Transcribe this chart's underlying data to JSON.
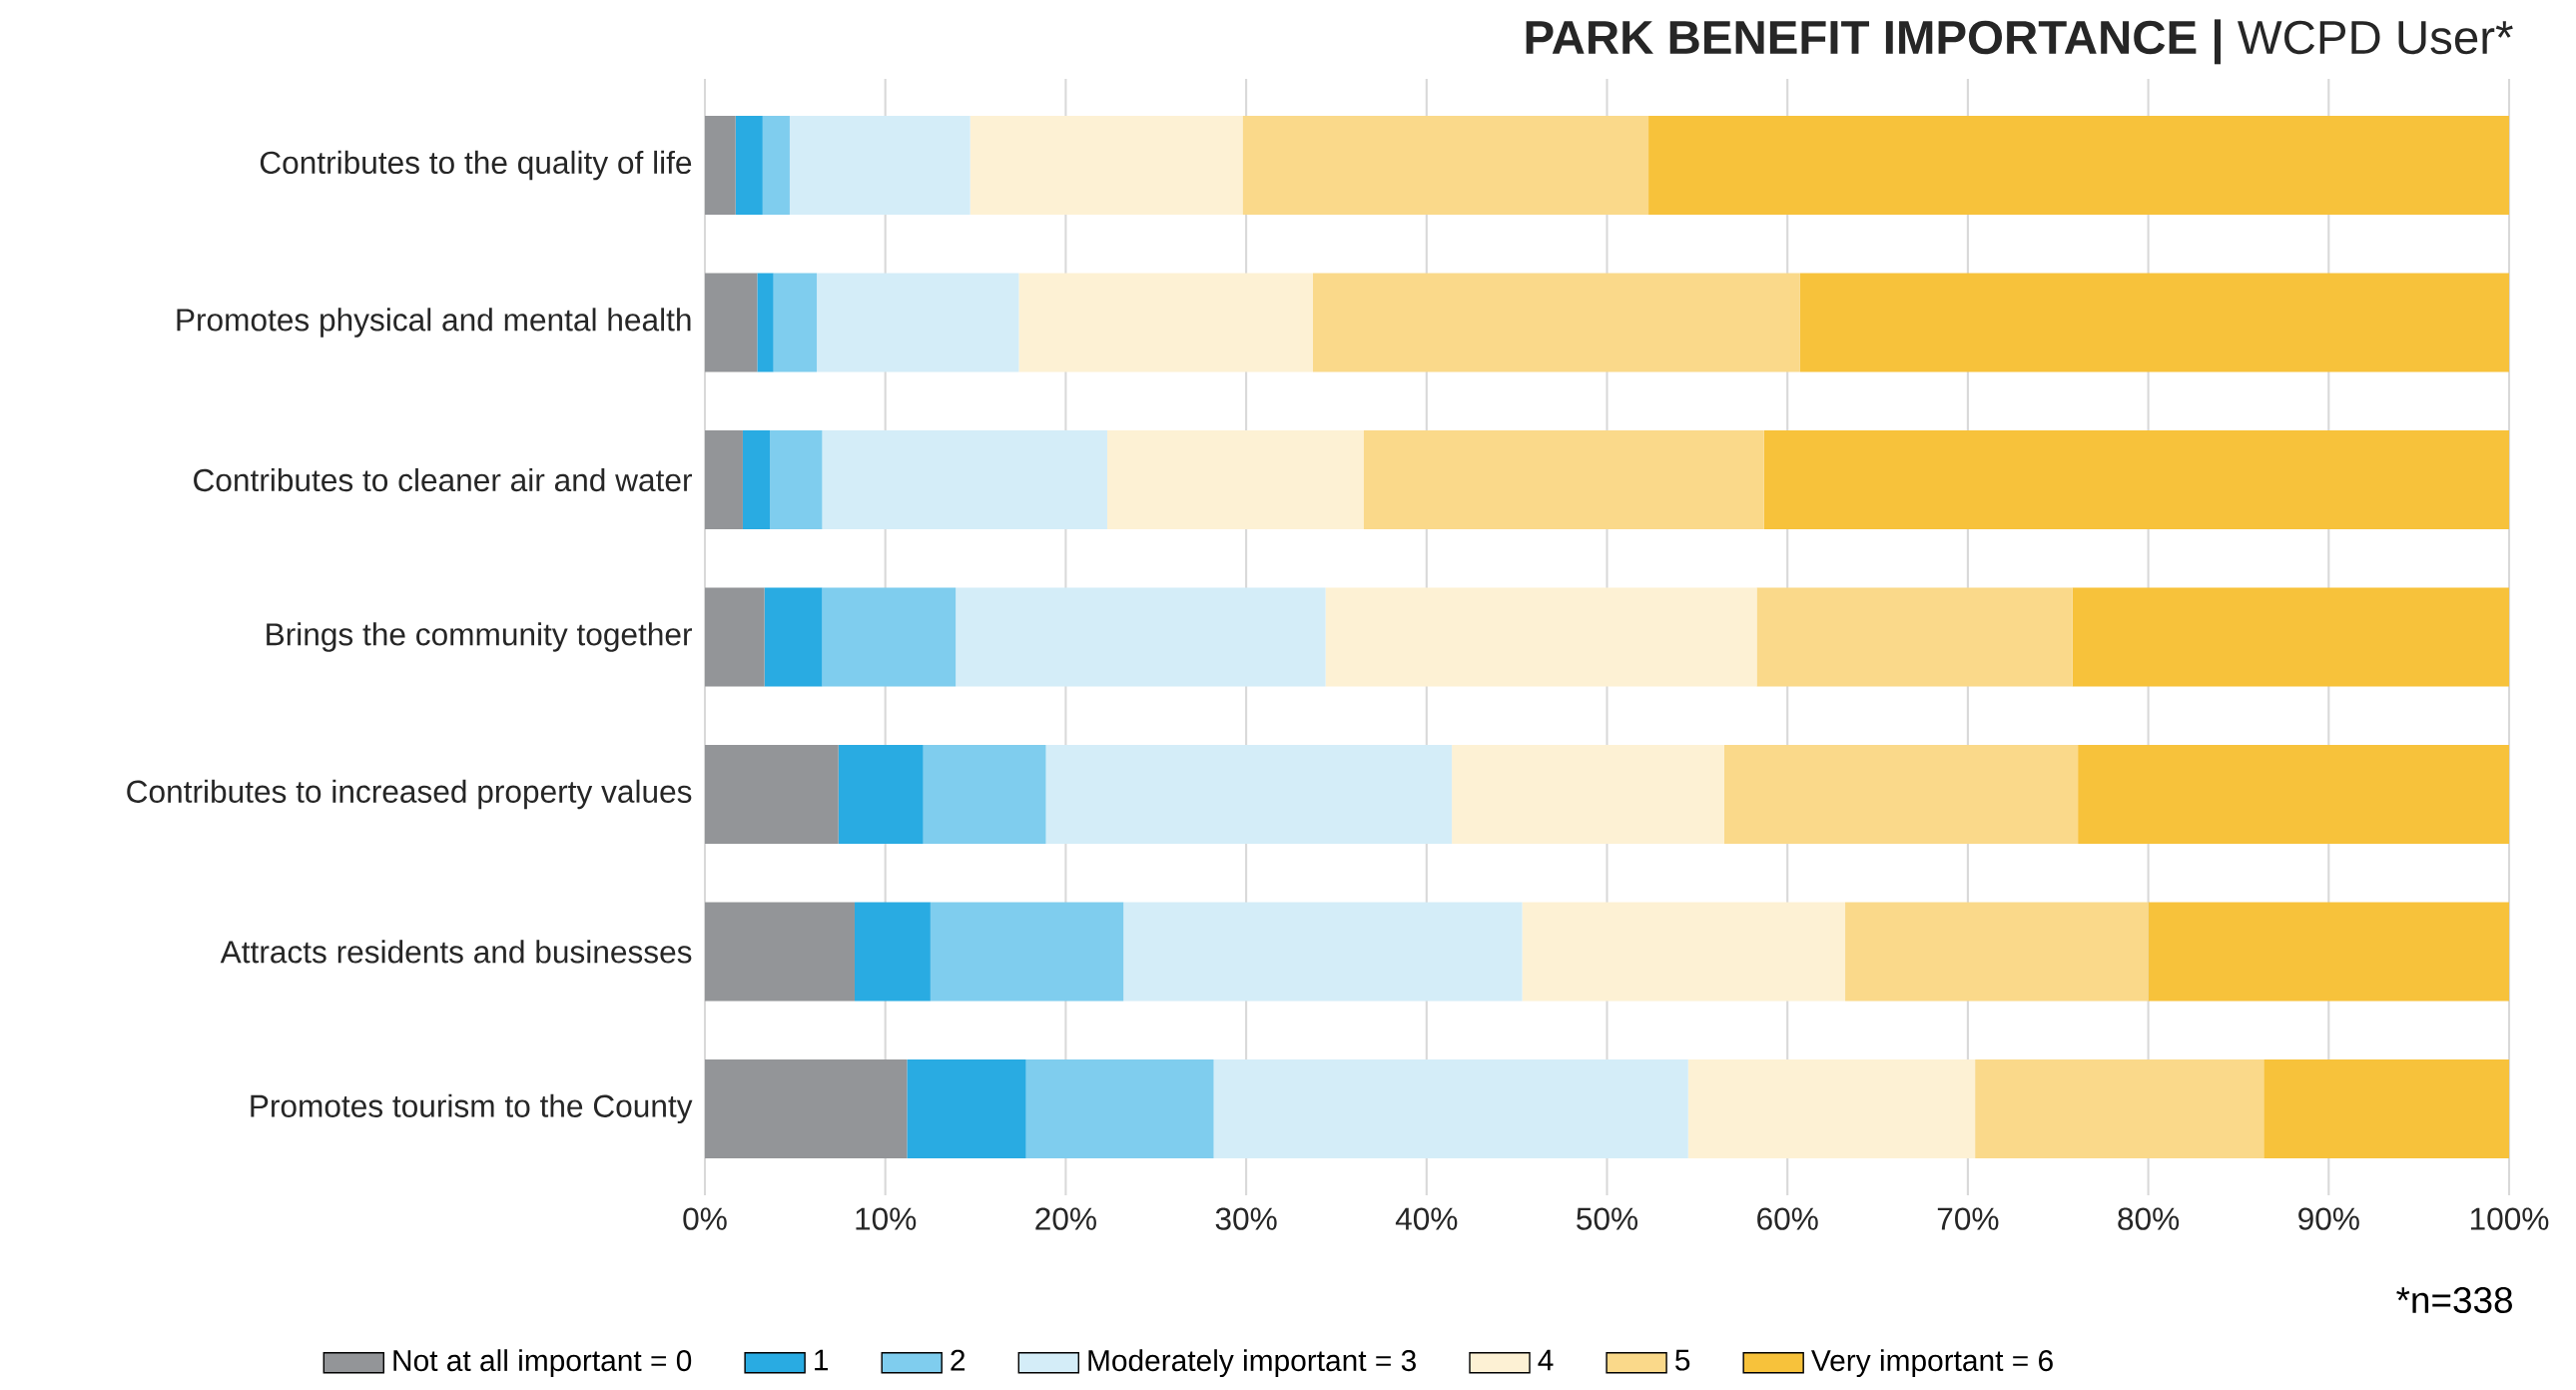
{
  "chart_data": {
    "type": "bar",
    "orientation": "horizontal",
    "stacked": true,
    "title": "**PARK BENEFIT IMPORTANCE |** WCPD User*",
    "annotations": [
      "*n=338"
    ],
    "categories": [
      "Contributes to the quality of life",
      "Promotes physical and mental health",
      "Contributes to cleaner air and water",
      "Brings the community together",
      "Contributes to increased property values",
      "Attracts residents and businesses",
      "Promotes tourism to the County"
    ],
    "series": [
      {
        "name": "Not at all important = 0",
        "color": "#939598",
        "values": [
          1.7,
          2.9,
          2.1,
          3.3,
          7.4,
          8.3,
          11.2
        ]
      },
      {
        "name": "1",
        "color": "#29abe2",
        "values": [
          1.5,
          0.9,
          1.5,
          3.2,
          4.7,
          4.2,
          6.6
        ]
      },
      {
        "name": "2",
        "color": "#7fcdee",
        "values": [
          1.5,
          2.4,
          2.9,
          7.4,
          6.8,
          10.7,
          10.4
        ]
      },
      {
        "name": "Moderately important = 3",
        "color": "#d4edf8",
        "values": [
          10.0,
          11.2,
          15.8,
          20.5,
          22.5,
          22.1,
          26.3
        ]
      },
      {
        "name": "4",
        "color": "#fdf1d4",
        "values": [
          15.1,
          16.3,
          14.2,
          23.9,
          15.1,
          17.9,
          15.9
        ]
      },
      {
        "name": "5",
        "color": "#fad98a",
        "values": [
          22.5,
          27.0,
          22.2,
          17.5,
          19.6,
          16.8,
          16.0
        ]
      },
      {
        "name": "Very important = 6",
        "color": "#f7c23b",
        "values": [
          47.7,
          39.3,
          41.3,
          24.2,
          23.9,
          20.0,
          13.6
        ]
      }
    ],
    "xlim": [
      0,
      100
    ],
    "xticks": [
      {
        "value": 0,
        "label": "0%"
      },
      {
        "value": 10,
        "label": "10%"
      },
      {
        "value": 20,
        "label": "20%"
      },
      {
        "value": 30,
        "label": "30%"
      },
      {
        "value": 40,
        "label": "40%"
      },
      {
        "value": 50,
        "label": "50%"
      },
      {
        "value": 60,
        "label": "60%"
      },
      {
        "value": 70,
        "label": "70%"
      },
      {
        "value": 80,
        "label": "80%"
      },
      {
        "value": 90,
        "label": "90%"
      },
      {
        "value": 100,
        "label": "100%"
      }
    ],
    "grid": "x",
    "legend": "bottom"
  }
}
